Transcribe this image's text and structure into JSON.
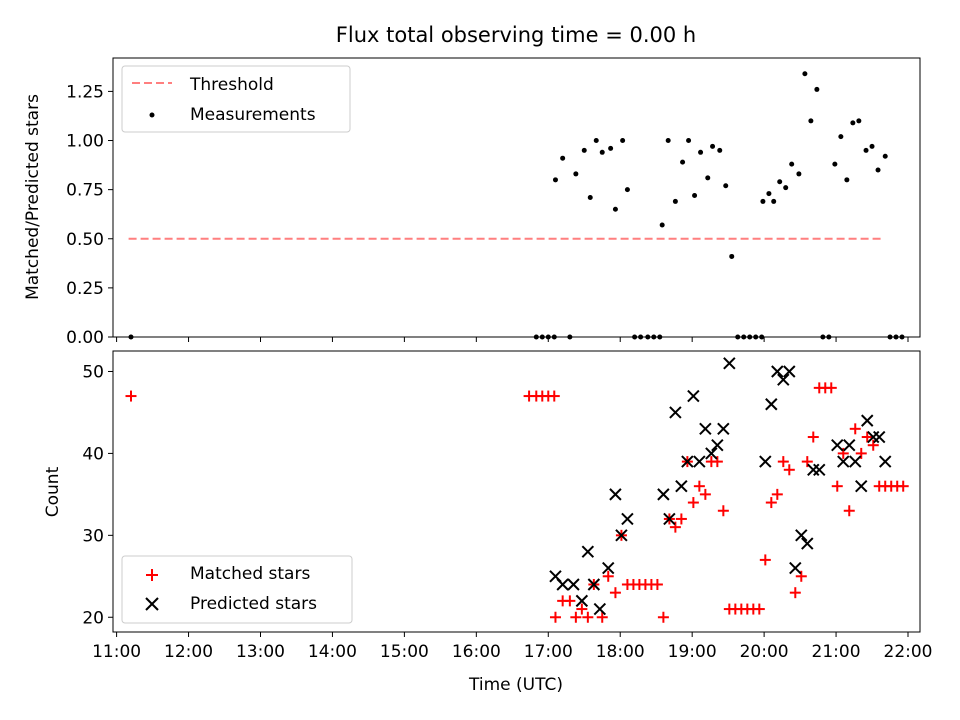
{
  "title": "Flux total observing time = 0.00 h",
  "chart_data": [
    {
      "panel": "top",
      "type": "scatter",
      "ylabel": "Matched/Predicted stars",
      "xlabel": "",
      "xlim": [
        "10:57",
        "22:10"
      ],
      "ylim": [
        0,
        1.42
      ],
      "yticks": [
        "0.00",
        "0.25",
        "0.50",
        "0.75",
        "1.00",
        "1.25"
      ],
      "legend": {
        "placement": "top-left",
        "entries": [
          "Threshold",
          "Measurements"
        ]
      },
      "series": [
        {
          "name": "Threshold",
          "kind": "line",
          "style": "dashed",
          "color": "#ff7f7f",
          "points": [
            [
              "11:10",
              0.5
            ],
            [
              "21:40",
              0.5
            ]
          ]
        },
        {
          "name": "Measurements",
          "kind": "scatter",
          "marker": "dot",
          "color": "#000000",
          "points": [
            [
              "11:12",
              0.0
            ],
            [
              "16:50",
              0.0
            ],
            [
              "16:55",
              0.0
            ],
            [
              "17:00",
              0.0
            ],
            [
              "17:05",
              0.0
            ],
            [
              "17:06",
              0.8
            ],
            [
              "17:12",
              0.91
            ],
            [
              "17:18",
              0.0
            ],
            [
              "17:23",
              0.83
            ],
            [
              "17:30",
              0.95
            ],
            [
              "17:35",
              0.71
            ],
            [
              "17:40",
              1.0
            ],
            [
              "17:45",
              0.94
            ],
            [
              "17:52",
              0.96
            ],
            [
              "17:56",
              0.65
            ],
            [
              "18:02",
              1.0
            ],
            [
              "18:06",
              0.75
            ],
            [
              "18:12",
              0.0
            ],
            [
              "18:17",
              0.0
            ],
            [
              "18:23",
              0.0
            ],
            [
              "18:28",
              0.0
            ],
            [
              "18:33",
              0.0
            ],
            [
              "18:35",
              0.57
            ],
            [
              "18:40",
              1.0
            ],
            [
              "18:46",
              0.69
            ],
            [
              "18:52",
              0.89
            ],
            [
              "18:57",
              1.0
            ],
            [
              "19:02",
              0.72
            ],
            [
              "19:07",
              0.94
            ],
            [
              "19:13",
              0.81
            ],
            [
              "19:17",
              0.97
            ],
            [
              "19:23",
              0.95
            ],
            [
              "19:28",
              0.77
            ],
            [
              "19:33",
              0.41
            ],
            [
              "19:38",
              0.0
            ],
            [
              "19:43",
              0.0
            ],
            [
              "19:48",
              0.0
            ],
            [
              "19:53",
              0.0
            ],
            [
              "19:58",
              0.0
            ],
            [
              "19:59",
              0.69
            ],
            [
              "20:04",
              0.73
            ],
            [
              "20:08",
              0.69
            ],
            [
              "20:13",
              0.79
            ],
            [
              "20:18",
              0.76
            ],
            [
              "20:23",
              0.88
            ],
            [
              "20:29",
              0.83
            ],
            [
              "20:34",
              1.34
            ],
            [
              "20:39",
              1.1
            ],
            [
              "20:44",
              1.26
            ],
            [
              "20:49",
              0.0
            ],
            [
              "20:54",
              0.0
            ],
            [
              "20:59",
              0.88
            ],
            [
              "21:04",
              1.02
            ],
            [
              "21:09",
              0.8
            ],
            [
              "21:14",
              1.09
            ],
            [
              "21:19",
              1.1
            ],
            [
              "21:25",
              0.95
            ],
            [
              "21:30",
              0.97
            ],
            [
              "21:35",
              0.85
            ],
            [
              "21:41",
              0.92
            ],
            [
              "21:45",
              0.0
            ],
            [
              "21:50",
              0.0
            ],
            [
              "21:55",
              0.0
            ]
          ]
        }
      ]
    },
    {
      "panel": "bottom",
      "type": "scatter",
      "ylabel": "Count",
      "xlabel": "Time (UTC)",
      "xlim": [
        "10:57",
        "22:10"
      ],
      "ylim": [
        18.2,
        52.5
      ],
      "yticks": [
        "20",
        "30",
        "40",
        "50"
      ],
      "xticks": [
        "11:00",
        "12:00",
        "13:00",
        "14:00",
        "15:00",
        "16:00",
        "17:00",
        "18:00",
        "19:00",
        "20:00",
        "21:00",
        "22:00"
      ],
      "legend": {
        "placement": "bottom-left",
        "entries": [
          "Matched stars",
          "Predicted stars"
        ]
      },
      "series": [
        {
          "name": "Matched stars",
          "kind": "scatter",
          "marker": "plus",
          "color": "#ff0000",
          "points": [
            [
              "11:12",
              47
            ],
            [
              "16:44",
              47
            ],
            [
              "16:50",
              47
            ],
            [
              "16:55",
              47
            ],
            [
              "17:00",
              47
            ],
            [
              "17:05",
              47
            ],
            [
              "17:06",
              20
            ],
            [
              "17:12",
              22
            ],
            [
              "17:18",
              22
            ],
            [
              "17:23",
              20
            ],
            [
              "17:28",
              21
            ],
            [
              "17:33",
              20
            ],
            [
              "17:38",
              24
            ],
            [
              "17:45",
              20
            ],
            [
              "17:50",
              25
            ],
            [
              "17:56",
              23
            ],
            [
              "18:01",
              30
            ],
            [
              "18:06",
              24
            ],
            [
              "18:11",
              24
            ],
            [
              "18:16",
              24
            ],
            [
              "18:21",
              24
            ],
            [
              "18:26",
              24
            ],
            [
              "18:31",
              24
            ],
            [
              "18:36",
              20
            ],
            [
              "18:41",
              32
            ],
            [
              "18:46",
              31
            ],
            [
              "18:51",
              32
            ],
            [
              "18:56",
              39
            ],
            [
              "19:01",
              34
            ],
            [
              "19:06",
              36
            ],
            [
              "19:11",
              35
            ],
            [
              "19:16",
              39
            ],
            [
              "19:21",
              39
            ],
            [
              "19:26",
              33
            ],
            [
              "19:31",
              21
            ],
            [
              "19:36",
              21
            ],
            [
              "19:41",
              21
            ],
            [
              "19:46",
              21
            ],
            [
              "19:51",
              21
            ],
            [
              "19:56",
              21
            ],
            [
              "20:01",
              27
            ],
            [
              "20:06",
              34
            ],
            [
              "20:11",
              35
            ],
            [
              "20:16",
              39
            ],
            [
              "20:21",
              38
            ],
            [
              "20:26",
              23
            ],
            [
              "20:31",
              25
            ],
            [
              "20:36",
              39
            ],
            [
              "20:41",
              42
            ],
            [
              "20:46",
              48
            ],
            [
              "20:51",
              48
            ],
            [
              "20:56",
              48
            ],
            [
              "21:01",
              36
            ],
            [
              "21:06",
              40
            ],
            [
              "21:11",
              33
            ],
            [
              "21:16",
              43
            ],
            [
              "21:21",
              40
            ],
            [
              "21:26",
              42
            ],
            [
              "21:31",
              41
            ],
            [
              "21:36",
              36
            ],
            [
              "21:41",
              36
            ],
            [
              "21:46",
              36
            ],
            [
              "21:51",
              36
            ],
            [
              "21:56",
              36
            ]
          ]
        },
        {
          "name": "Predicted stars",
          "kind": "scatter",
          "marker": "x",
          "color": "#000000",
          "points": [
            [
              "17:06",
              25
            ],
            [
              "17:12",
              24
            ],
            [
              "17:21",
              24
            ],
            [
              "17:28",
              22
            ],
            [
              "17:33",
              28
            ],
            [
              "17:38",
              24
            ],
            [
              "17:43",
              21
            ],
            [
              "17:50",
              26
            ],
            [
              "17:56",
              35
            ],
            [
              "18:01",
              30
            ],
            [
              "18:06",
              32
            ],
            [
              "18:36",
              35
            ],
            [
              "18:41",
              32
            ],
            [
              "18:46",
              45
            ],
            [
              "18:51",
              36
            ],
            [
              "18:56",
              39
            ],
            [
              "19:01",
              47
            ],
            [
              "19:06",
              39
            ],
            [
              "19:11",
              43
            ],
            [
              "19:16",
              40
            ],
            [
              "19:21",
              41
            ],
            [
              "19:26",
              43
            ],
            [
              "19:31",
              51
            ],
            [
              "20:01",
              39
            ],
            [
              "20:06",
              46
            ],
            [
              "20:11",
              50
            ],
            [
              "20:16",
              49
            ],
            [
              "20:21",
              50
            ],
            [
              "20:26",
              26
            ],
            [
              "20:31",
              30
            ],
            [
              "20:36",
              29
            ],
            [
              "20:41",
              38
            ],
            [
              "20:46",
              38
            ],
            [
              "21:01",
              41
            ],
            [
              "21:06",
              39
            ],
            [
              "21:11",
              41
            ],
            [
              "21:16",
              39
            ],
            [
              "21:21",
              36
            ],
            [
              "21:26",
              44
            ],
            [
              "21:31",
              42
            ],
            [
              "21:36",
              42
            ],
            [
              "21:41",
              39
            ]
          ]
        }
      ]
    }
  ]
}
